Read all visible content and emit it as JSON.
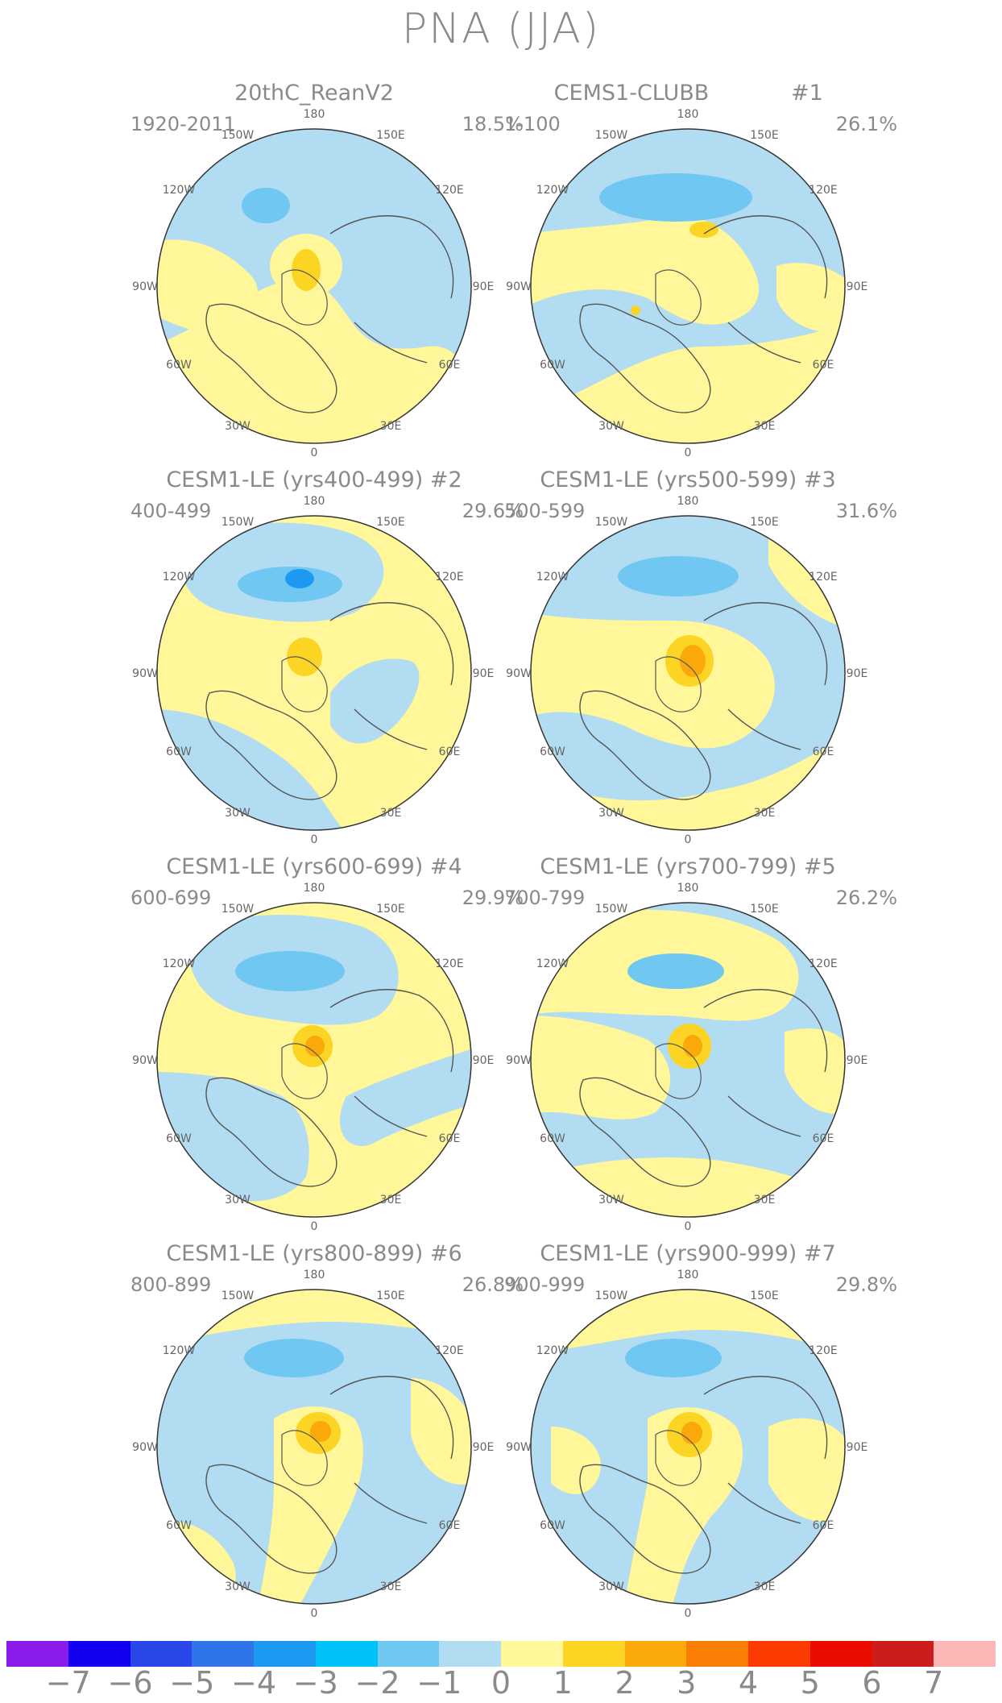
{
  "title": "PNA (JJA)",
  "lon_labels": [
    "180",
    "150E",
    "120E",
    "90E",
    "60E",
    "30E",
    "0",
    "30W",
    "60W",
    "90W",
    "120W",
    "150W"
  ],
  "colorbar": {
    "colors": [
      "#8a1be8",
      "#1400f0",
      "#2b47ea",
      "#2f74e8",
      "#1c9af2",
      "#00c2f8",
      "#6fc7f2",
      "#b2dcf2",
      "#fff799",
      "#fcd524",
      "#fba80a",
      "#fa7d05",
      "#fb3b02",
      "#eb0c00",
      "#cd1c1c",
      "#fcb6b6"
    ],
    "labels": [
      "−7",
      "−6",
      "−5",
      "−4",
      "−3",
      "−2",
      "−1",
      "0",
      "1",
      "2",
      "3",
      "4",
      "5",
      "6",
      "7"
    ]
  },
  "panels": [
    {
      "title": "20thC_ReanV2",
      "number": "",
      "period": "1920-2011",
      "percent": "18.5%"
    },
    {
      "title": "CEMS1-CLUBB",
      "number": "#1",
      "period": "1-100",
      "percent": "26.1%"
    },
    {
      "title": "CESM1-LE (yrs400-499) #2",
      "number": "",
      "period": "400-499",
      "percent": "29.6%"
    },
    {
      "title": "CESM1-LE (yrs500-599) #3",
      "number": "",
      "period": "500-599",
      "percent": "31.6%"
    },
    {
      "title": "CESM1-LE (yrs600-699) #4",
      "number": "",
      "period": "600-699",
      "percent": "29.9%"
    },
    {
      "title": "CESM1-LE (yrs700-799) #5",
      "number": "",
      "period": "700-799",
      "percent": "26.2%"
    },
    {
      "title": "CESM1-LE (yrs800-899) #6",
      "number": "",
      "period": "800-899",
      "percent": "26.8%"
    },
    {
      "title": "CESM1-LE (yrs900-999) #7",
      "number": "",
      "period": "900-999",
      "percent": "29.8%"
    }
  ]
}
